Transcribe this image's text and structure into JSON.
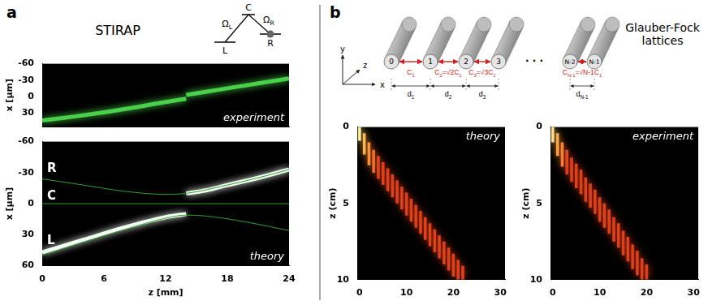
{
  "panel_a": {
    "letter": "a",
    "title": "STIRAP",
    "scheme": {
      "levels": [
        "L",
        "C",
        "R"
      ],
      "couplings": [
        [
          {
            "t": "Ω"
          },
          {
            "sub": "L"
          }
        ],
        [
          {
            "t": "Ω"
          },
          {
            "sub": "R"
          }
        ]
      ]
    }
  },
  "panel_b": {
    "letter": "b",
    "title": "Glauber-Fock lattices",
    "lattice": {
      "waveguides": [
        "0",
        "1",
        "2",
        "3",
        "N-2",
        "N-1"
      ],
      "ellipsis": "· · ·",
      "couplings": [
        [
          {
            "t": "C"
          },
          {
            "sub": "1"
          }
        ],
        [
          {
            "t": "C"
          },
          {
            "sub": "2"
          },
          {
            "t": "=√2C"
          },
          {
            "sub": "1"
          }
        ],
        [
          {
            "t": "C"
          },
          {
            "sub": "3"
          },
          {
            "t": "=√3C"
          },
          {
            "sub": "1"
          }
        ],
        [
          {
            "t": "C"
          },
          {
            "sub": "N-1"
          },
          {
            "t": "=√N-1C"
          },
          {
            "sub": "1"
          }
        ]
      ],
      "spacings": [
        [
          {
            "t": "d"
          },
          {
            "sub": "1"
          }
        ],
        [
          {
            "t": "d"
          },
          {
            "sub": "2"
          }
        ],
        [
          {
            "t": "d"
          },
          {
            "sub": "3"
          }
        ],
        [
          {
            "t": "d"
          },
          {
            "sub": "N-1"
          }
        ]
      ],
      "axes": [
        "x",
        "y",
        "z"
      ]
    }
  },
  "chart_data": [
    {
      "type": "line",
      "y_label": "x [μm]",
      "xlim": [
        0,
        24
      ],
      "ylim": [
        -60,
        55
      ],
      "yticks": [
        -60,
        -30,
        0,
        30
      ],
      "tick_labels": "y",
      "grid": false,
      "annotations": [
        "experiment"
      ],
      "series": [
        {
          "color": "#4ad04a",
          "line_style": "glow",
          "x": [
            0,
            3,
            6,
            9,
            12,
            14
          ],
          "values": [
            44,
            37,
            29,
            20,
            10,
            4
          ]
        },
        {
          "color": "#4ad04a",
          "line_style": "glow",
          "x": [
            14,
            16,
            18,
            20,
            22,
            24
          ],
          "values": [
            -3,
            -9,
            -15,
            -21,
            -27,
            -33
          ]
        }
      ]
    },
    {
      "type": "line",
      "x_label": "z [mm]",
      "y_label": "x [μm]",
      "xlim": [
        0,
        24
      ],
      "xticks": [
        0,
        6,
        12,
        18,
        24
      ],
      "ylim": [
        -60,
        60
      ],
      "yticks": [
        -60,
        -30,
        0,
        30,
        60
      ],
      "grid": false,
      "annotations": [
        "theory",
        "R",
        "C",
        "L"
      ],
      "series": [
        {
          "color": "#2f9e2f",
          "line_style": "solid",
          "x": [
            0,
            4,
            8,
            12,
            14,
            18,
            21,
            24
          ],
          "values": [
            -24,
            -18,
            -12,
            -9,
            -10,
            -18,
            -25,
            -33
          ]
        },
        {
          "color": "#2f9e2f",
          "line_style": "solid",
          "x": [
            0,
            24
          ],
          "values": [
            0,
            0
          ]
        },
        {
          "color": "#2f9e2f",
          "line_style": "solid",
          "x": [
            0,
            4,
            8,
            12,
            14,
            16,
            20,
            24
          ],
          "values": [
            50,
            37,
            25,
            14,
            11,
            12,
            18,
            26
          ]
        },
        {
          "color": "#f4fff4",
          "line_style": "glow",
          "x": [
            0,
            4,
            8,
            12,
            14
          ],
          "values": [
            47,
            35,
            23,
            13,
            10
          ]
        },
        {
          "color": "#f4fff4",
          "line_style": "glow",
          "x": [
            14,
            16,
            18,
            21,
            24
          ],
          "values": [
            -10,
            -13,
            -18,
            -25,
            -33
          ]
        }
      ]
    },
    {
      "type": "streaks",
      "y_label": "z (cm)",
      "xlim": [
        -0.5,
        31
      ],
      "xticks": [
        0,
        10,
        20,
        30
      ],
      "ylim": [
        0,
        10
      ],
      "yticks": [
        0,
        5,
        10
      ],
      "grid": false,
      "annotations": [
        "theory"
      ],
      "waveguide": [
        0,
        1,
        2,
        3,
        4,
        5,
        6,
        7,
        8,
        9,
        10,
        11,
        12,
        13,
        14,
        15,
        16,
        17,
        18,
        19,
        20,
        21,
        22
      ],
      "z_start": [
        0,
        0.4,
        1.0,
        1.5,
        1.9,
        2.3,
        2.7,
        3.1,
        3.5,
        3.9,
        4.3,
        4.7,
        5.1,
        5.5,
        5.9,
        6.3,
        6.7,
        7.1,
        7.5,
        7.9,
        8.3,
        8.7,
        9.1
      ],
      "z_end": [
        0.9,
        1.8,
        2.5,
        3.0,
        3.4,
        3.8,
        4.2,
        4.6,
        5.0,
        5.4,
        5.8,
        6.2,
        6.6,
        7.0,
        7.4,
        7.8,
        8.2,
        8.6,
        9.0,
        9.4,
        9.8,
        10,
        10
      ],
      "colors": [
        "#fff0a0",
        "#ffb347",
        "#ff8c3a",
        "#f36a2a",
        "#e0401c",
        "#e0401c",
        "#e0401c",
        "#e0401c",
        "#e0401c",
        "#e0401c",
        "#e0401c",
        "#e0401c",
        "#e0401c",
        "#e0401c",
        "#e0401c",
        "#e0401c",
        "#e0401c",
        "#e0401c",
        "#e0401c",
        "#e0401c",
        "#e0401c",
        "#e0401c",
        "#e0401c"
      ]
    },
    {
      "type": "streaks",
      "y_label": "z (cm)",
      "xlim": [
        -0.5,
        31
      ],
      "xticks": [
        0,
        10,
        20,
        30
      ],
      "ylim": [
        0,
        10
      ],
      "yticks": [
        0,
        5,
        10
      ],
      "grid": false,
      "annotations": [
        "experiment"
      ],
      "waveguide": [
        0,
        1,
        2,
        3,
        4,
        5,
        6,
        7,
        8,
        9,
        10,
        11,
        12,
        13,
        14,
        15,
        16,
        17,
        18,
        19,
        20
      ],
      "z_start": [
        0,
        0.4,
        1.0,
        1.5,
        2.0,
        2.4,
        2.8,
        3.3,
        3.7,
        4.1,
        4.6,
        5.0,
        5.4,
        5.9,
        6.3,
        6.8,
        7.2,
        7.7,
        8.1,
        8.6,
        9.0
      ],
      "z_end": [
        1.0,
        1.9,
        2.6,
        3.1,
        3.6,
        4.0,
        4.4,
        4.9,
        5.3,
        5.7,
        6.2,
        6.6,
        7.0,
        7.5,
        7.9,
        8.4,
        8.8,
        9.3,
        9.7,
        10,
        10
      ],
      "colors": [
        "#ffe08a",
        "#ffa040",
        "#ff7a34",
        "#e0401c",
        "#e0401c",
        "#e0401c",
        "#e0401c",
        "#e0401c",
        "#e0401c",
        "#e0401c",
        "#e0401c",
        "#e0401c",
        "#e0401c",
        "#e0401c",
        "#e0401c",
        "#e0401c",
        "#e0401c",
        "#e0401c",
        "#e0401c",
        "#e0401c",
        "#e0401c"
      ]
    }
  ]
}
